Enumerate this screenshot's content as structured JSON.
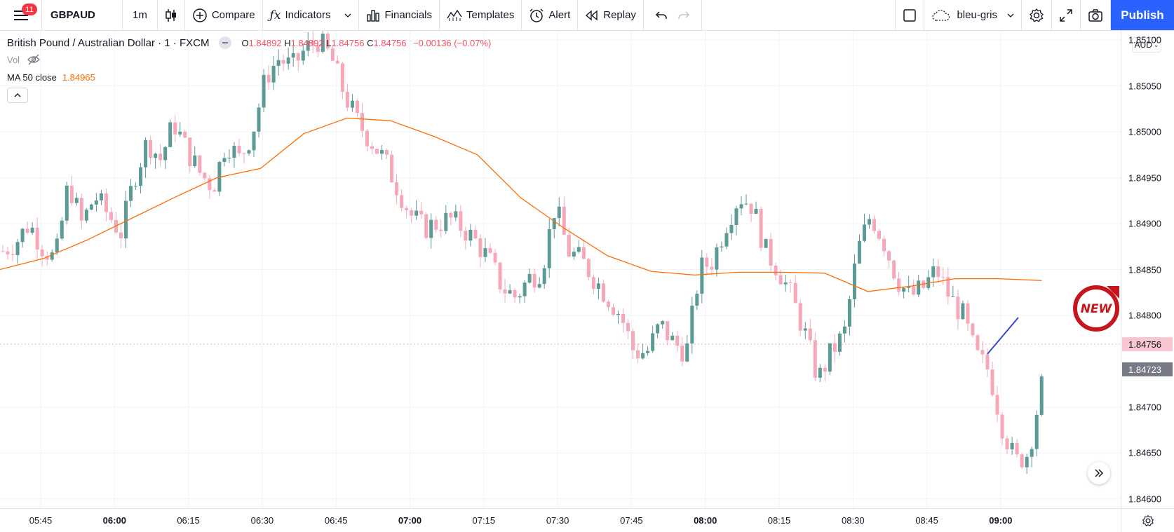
{
  "toolbar": {
    "notification_count": "11",
    "symbol": "GBPAUD",
    "interval": "1m",
    "compare_label": "Compare",
    "indicators_label": "Indicators",
    "financials_label": "Financials",
    "templates_label": "Templates",
    "alert_label": "Alert",
    "replay_label": "Replay",
    "layout_name": "bleu-gris",
    "publish_label": "Publish"
  },
  "legend": {
    "description": "British Pound / Australian Dollar · 1 · FXCM",
    "open_label": "O",
    "open": "1.84892",
    "high_label": "H",
    "high": "1.84892",
    "low_label": "L",
    "low": "1.84756",
    "close_label": "C",
    "close": "1.84756",
    "change": "−0.00136 (−0.07%)",
    "vol_label": "Vol",
    "ma_label": "MA 50 close",
    "ma_value": "1.84965"
  },
  "price_axis": {
    "currency": "AUD",
    "ticks": [
      "1.85100",
      "1.85050",
      "1.85000",
      "1.84950",
      "1.84900",
      "1.84850",
      "1.84800",
      "1.84700",
      "1.84650",
      "1.84600"
    ],
    "last_price": "1.84756",
    "crosshair_price": "1.84723"
  },
  "time_axis": {
    "ticks": [
      {
        "label": "05:45",
        "major": false
      },
      {
        "label": "06:00",
        "major": true
      },
      {
        "label": "06:15",
        "major": false
      },
      {
        "label": "06:30",
        "major": false
      },
      {
        "label": "06:45",
        "major": false
      },
      {
        "label": "07:00",
        "major": true
      },
      {
        "label": "07:15",
        "major": false
      },
      {
        "label": "07:30",
        "major": false
      },
      {
        "label": "07:45",
        "major": false
      },
      {
        "label": "08:00",
        "major": true
      },
      {
        "label": "08:15",
        "major": false
      },
      {
        "label": "08:30",
        "major": false
      },
      {
        "label": "08:45",
        "major": false
      },
      {
        "label": "09:00",
        "major": true
      }
    ]
  },
  "sticker_text": "NEW",
  "colors": {
    "up": "#5b9a96",
    "down": "#f7a8b8",
    "ma": "#ff6d00",
    "accent": "#2962ff",
    "grid": "#f0f3fa"
  },
  "chart_data": {
    "type": "candlestick",
    "ylim": [
      1.8459,
      1.8511
    ],
    "close_path": [
      1.8487,
      1.8488,
      1.849,
      1.84875,
      1.8486,
      1.84945,
      1.849,
      1.8493,
      1.8491,
      1.8489,
      1.8495,
      1.8499,
      1.8497,
      1.8501,
      1.8498,
      1.84955,
      1.8494,
      1.8499,
      1.8497,
      1.85,
      1.8506,
      1.8508,
      1.8507,
      1.8509,
      1.851,
      1.8508,
      1.8504,
      1.8501,
      1.8499,
      1.8497,
      1.8494,
      1.8491,
      1.84895,
      1.849,
      1.84905,
      1.84895,
      1.8488,
      1.8486,
      1.8483,
      1.8482,
      1.8484,
      1.8485,
      1.8492,
      1.8487,
      1.8486,
      1.8484,
      1.8482,
      1.848,
      1.8476,
      1.8476,
      1.8479,
      1.8477,
      1.8476,
      1.8485,
      1.8486,
      1.849,
      1.8493,
      1.8492,
      1.8487,
      1.8485,
      1.8482,
      1.8478,
      1.8473,
      1.8476,
      1.8478,
      1.8487,
      1.8491,
      1.8488,
      1.8484,
      1.8482,
      1.8483,
      1.8485,
      1.8482,
      1.848,
      1.84756,
      1.8474,
      1.8468,
      1.8464,
      1.8465,
      1.84723
    ],
    "ma_path": [
      1.8485,
      1.84862,
      1.84882,
      1.84905,
      1.84928,
      1.8495,
      1.8496,
      1.84998,
      1.85015,
      1.85012,
      1.84995,
      1.84975,
      1.84928,
      1.84895,
      1.84865,
      1.84848,
      1.84844,
      1.84847,
      1.84847,
      1.84846,
      1.84826,
      1.84832,
      1.8484,
      1.8484,
      1.84838
    ]
  }
}
